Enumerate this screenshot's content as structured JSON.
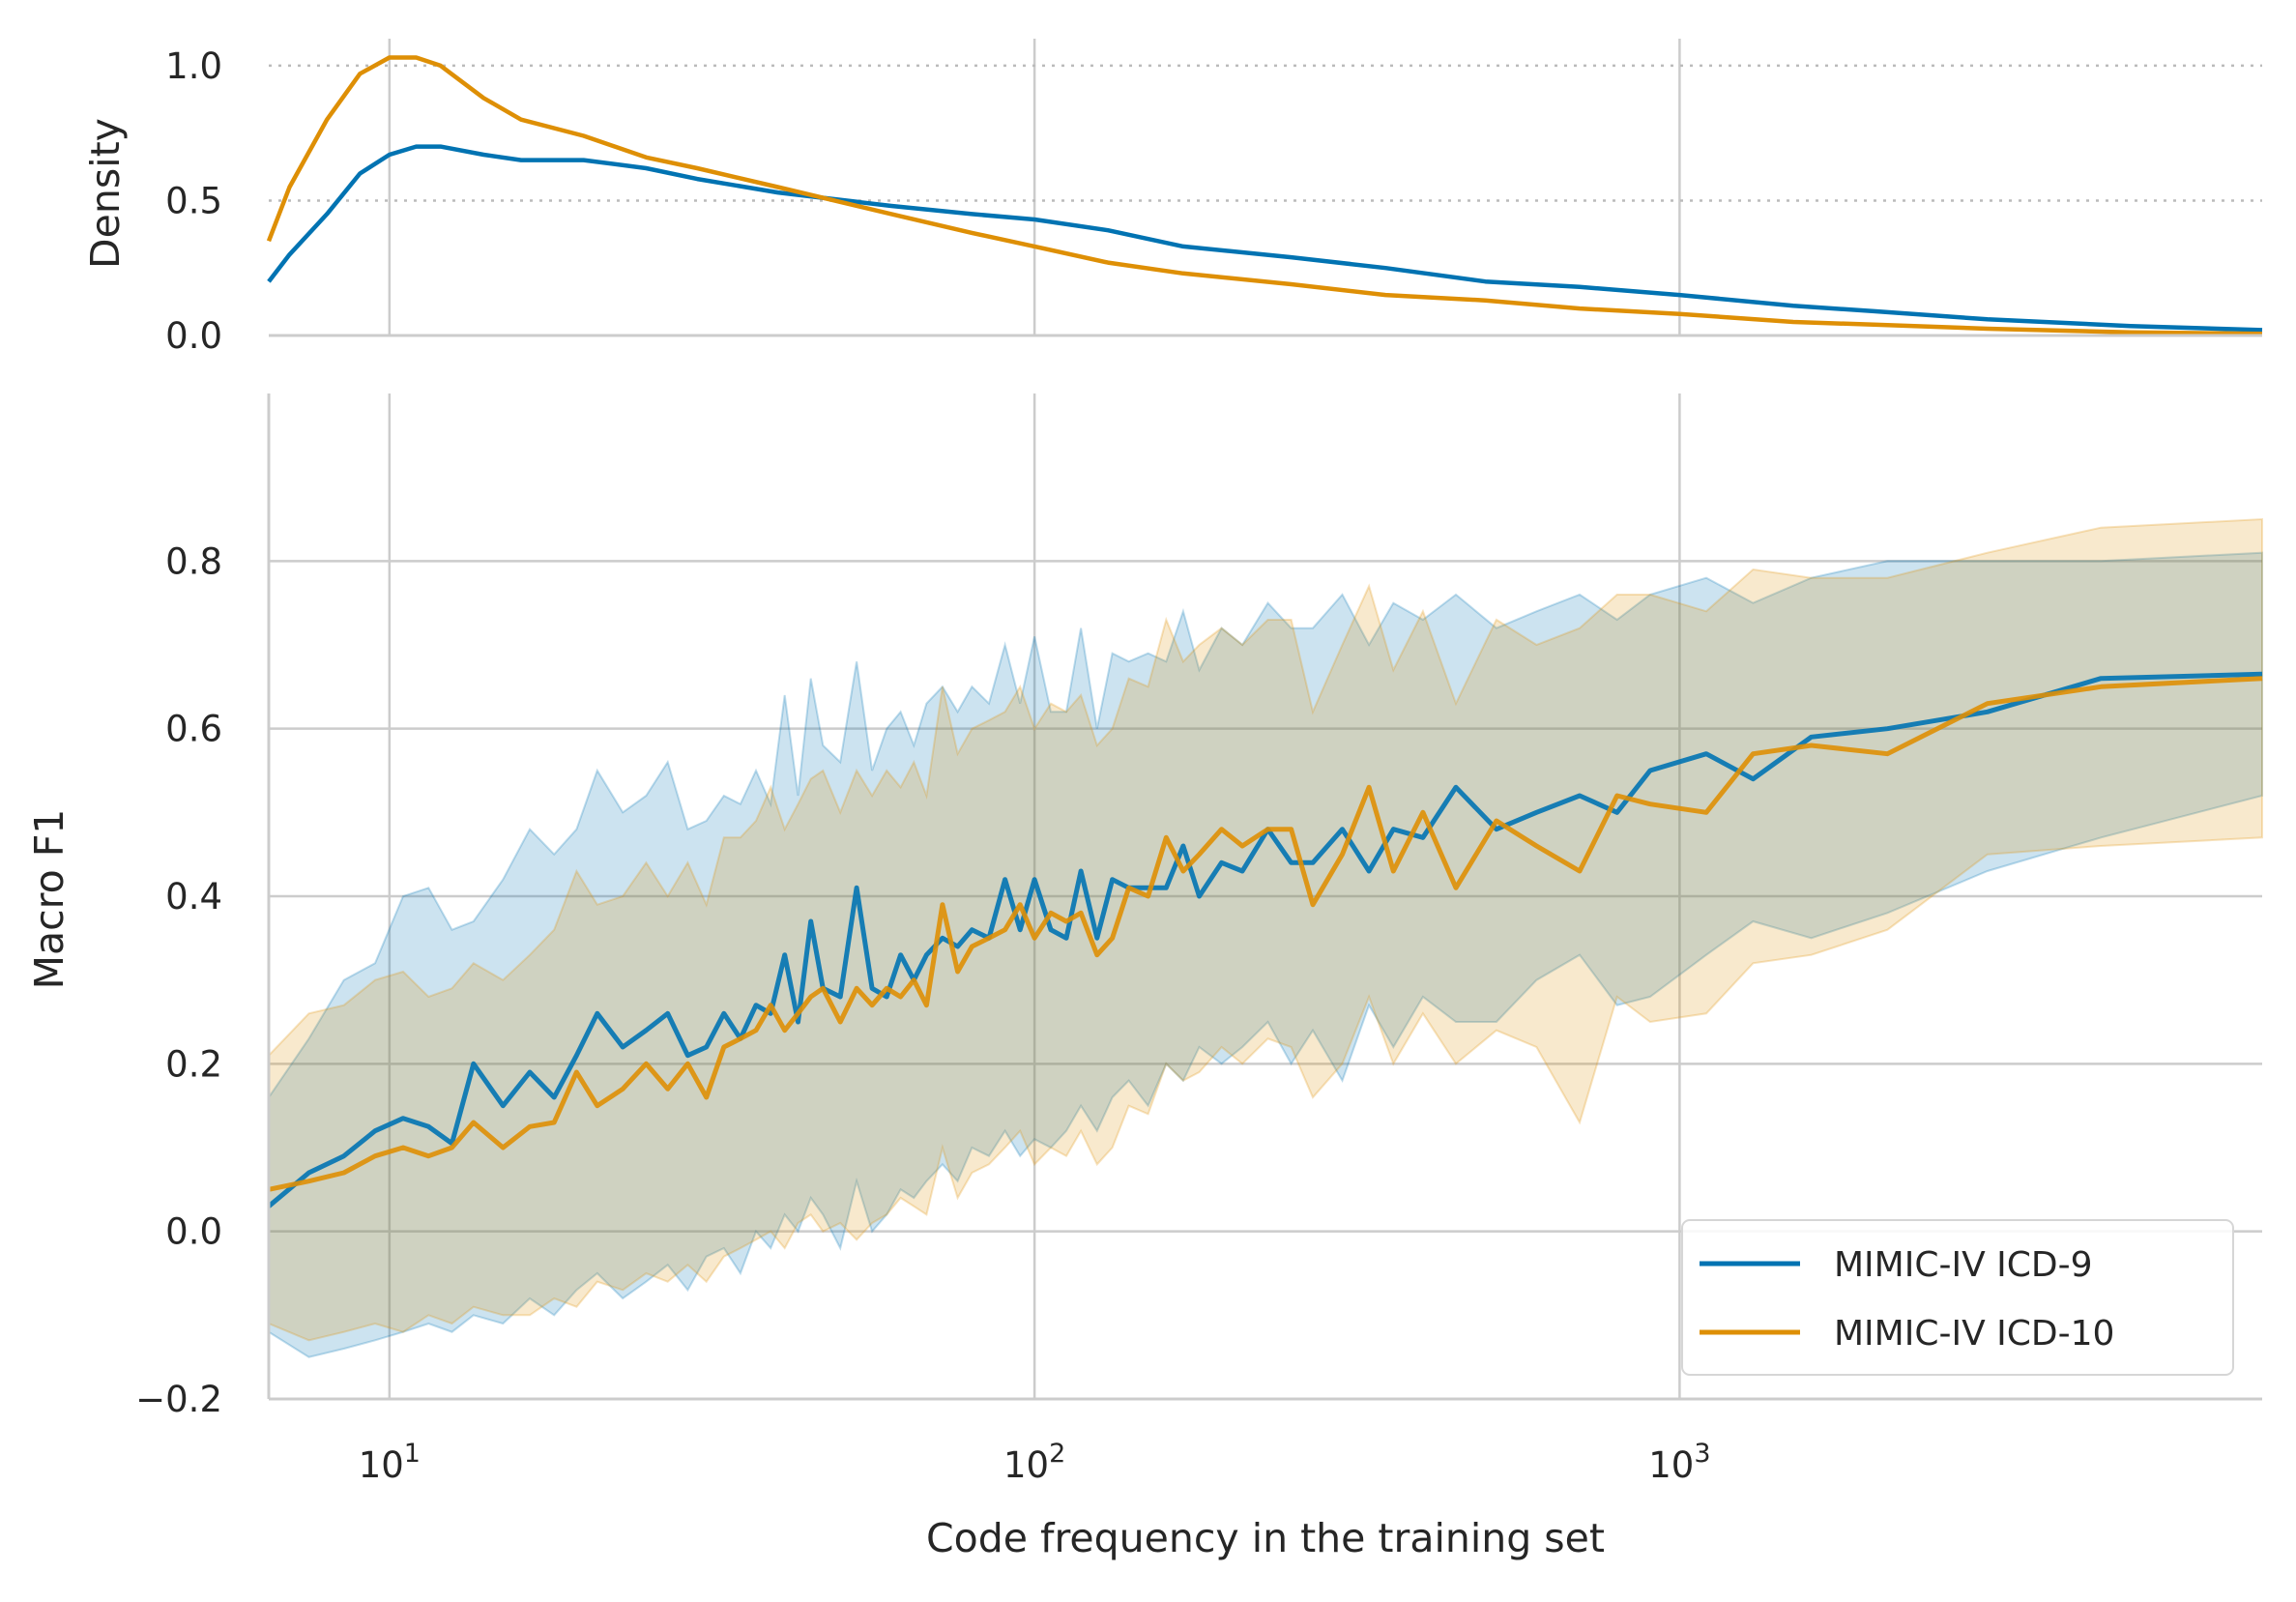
{
  "chart_data": [
    {
      "panel": "density",
      "type": "line",
      "ylabel": "Density",
      "xscale": "log",
      "xlim": [
        6.5,
        8000
      ],
      "ylim": [
        0,
        1.1
      ],
      "yticks": [
        "0.0",
        "0.5",
        "1.0"
      ],
      "y_gridlines": "dotted",
      "series": [
        {
          "name": "MIMIC-IV ICD-9",
          "color": "#0173b2",
          "x": [
            6.5,
            7,
            8,
            9,
            10,
            11,
            12,
            14,
            16,
            20,
            25,
            30,
            40,
            60,
            80,
            100,
            130,
            170,
            250,
            350,
            500,
            700,
            1000,
            1500,
            2000,
            3000,
            5000,
            8000
          ],
          "y": [
            0.2,
            0.3,
            0.45,
            0.6,
            0.67,
            0.7,
            0.7,
            0.67,
            0.65,
            0.65,
            0.62,
            0.58,
            0.53,
            0.48,
            0.45,
            0.43,
            0.39,
            0.33,
            0.29,
            0.25,
            0.2,
            0.18,
            0.15,
            0.11,
            0.09,
            0.06,
            0.035,
            0.02
          ]
        },
        {
          "name": "MIMIC-IV ICD-10",
          "color": "#de8f05",
          "x": [
            6.5,
            7,
            8,
            9,
            10,
            11,
            12,
            14,
            16,
            20,
            25,
            30,
            40,
            60,
            80,
            100,
            130,
            170,
            250,
            350,
            500,
            700,
            1000,
            1500,
            2000,
            3000,
            5000,
            8000
          ],
          "y": [
            0.35,
            0.55,
            0.8,
            0.97,
            1.03,
            1.03,
            1.0,
            0.88,
            0.8,
            0.74,
            0.66,
            0.62,
            0.55,
            0.45,
            0.38,
            0.33,
            0.27,
            0.23,
            0.19,
            0.15,
            0.13,
            0.1,
            0.08,
            0.05,
            0.04,
            0.025,
            0.012,
            0.006
          ]
        }
      ]
    },
    {
      "panel": "f1",
      "type": "line",
      "xlabel": "Code frequency in the training set",
      "ylabel": "Macro F1",
      "xscale": "log",
      "xlim": [
        6.5,
        8000
      ],
      "ylim": [
        -0.2,
        1.0
      ],
      "yticks": [
        "−0.2",
        "0.0",
        "0.2",
        "0.4",
        "0.6",
        "0.8"
      ],
      "xticks": [
        {
          "base": "10",
          "exp": "1"
        },
        {
          "base": "10",
          "exp": "2"
        },
        {
          "base": "10",
          "exp": "3"
        }
      ],
      "grid": true,
      "legend_position": "lower right",
      "series": [
        {
          "name": "MIMIC-IV ICD-9",
          "color": "#0173b2",
          "x": [
            6.5,
            7.5,
            8.5,
            9.5,
            10.5,
            11.5,
            12.5,
            13.5,
            15,
            16.5,
            18,
            19.5,
            21,
            23,
            25,
            27,
            29,
            31,
            33,
            35,
            37,
            39,
            41,
            43,
            45,
            47,
            50,
            53,
            56,
            59,
            62,
            65,
            68,
            72,
            76,
            80,
            85,
            90,
            95,
            100,
            106,
            112,
            118,
            125,
            132,
            140,
            150,
            160,
            170,
            180,
            195,
            210,
            230,
            250,
            270,
            300,
            330,
            360,
            400,
            450,
            520,
            600,
            700,
            800,
            900,
            1100,
            1300,
            1600,
            2100,
            3000,
            4500,
            8000
          ],
          "y": [
            0.03,
            0.07,
            0.09,
            0.12,
            0.135,
            0.125,
            0.105,
            0.2,
            0.15,
            0.19,
            0.16,
            0.21,
            0.26,
            0.22,
            0.24,
            0.26,
            0.21,
            0.22,
            0.26,
            0.23,
            0.27,
            0.26,
            0.33,
            0.25,
            0.37,
            0.29,
            0.28,
            0.41,
            0.29,
            0.28,
            0.33,
            0.3,
            0.33,
            0.35,
            0.34,
            0.36,
            0.35,
            0.42,
            0.36,
            0.42,
            0.36,
            0.35,
            0.43,
            0.35,
            0.42,
            0.41,
            0.41,
            0.41,
            0.46,
            0.4,
            0.44,
            0.43,
            0.48,
            0.44,
            0.44,
            0.48,
            0.43,
            0.48,
            0.47,
            0.53,
            0.48,
            0.5,
            0.52,
            0.5,
            0.55,
            0.57,
            0.54,
            0.59,
            0.6,
            0.62,
            0.66,
            0.665
          ]
        },
        {
          "name": "MIMIC-IV ICD-10",
          "color": "#de8f05",
          "x": [
            6.5,
            7.5,
            8.5,
            9.5,
            10.5,
            11.5,
            12.5,
            13.5,
            15,
            16.5,
            18,
            19.5,
            21,
            23,
            25,
            27,
            29,
            31,
            33,
            35,
            37,
            39,
            41,
            43,
            45,
            47,
            50,
            53,
            56,
            59,
            62,
            65,
            68,
            72,
            76,
            80,
            85,
            90,
            95,
            100,
            106,
            112,
            118,
            125,
            132,
            140,
            150,
            160,
            170,
            180,
            195,
            210,
            230,
            250,
            270,
            300,
            330,
            360,
            400,
            450,
            520,
            600,
            700,
            800,
            900,
            1100,
            1300,
            1600,
            2100,
            3000,
            4500,
            8000
          ],
          "y": [
            0.05,
            0.06,
            0.07,
            0.09,
            0.1,
            0.09,
            0.1,
            0.13,
            0.1,
            0.125,
            0.13,
            0.19,
            0.15,
            0.17,
            0.2,
            0.17,
            0.2,
            0.16,
            0.22,
            0.23,
            0.24,
            0.27,
            0.24,
            0.26,
            0.28,
            0.29,
            0.25,
            0.29,
            0.27,
            0.29,
            0.28,
            0.3,
            0.27,
            0.39,
            0.31,
            0.34,
            0.35,
            0.36,
            0.39,
            0.35,
            0.38,
            0.37,
            0.38,
            0.33,
            0.35,
            0.41,
            0.4,
            0.47,
            0.43,
            0.45,
            0.48,
            0.46,
            0.48,
            0.48,
            0.39,
            0.45,
            0.53,
            0.43,
            0.5,
            0.41,
            0.49,
            0.46,
            0.43,
            0.52,
            0.51,
            0.5,
            0.57,
            0.58,
            0.57,
            0.63,
            0.65,
            0.66
          ]
        }
      ],
      "bands": [
        {
          "series": "MIMIC-IV ICD-9",
          "color": "#0173b2",
          "x": [
            6.5,
            7.5,
            8.5,
            9.5,
            10.5,
            11.5,
            12.5,
            13.5,
            15,
            16.5,
            18,
            19.5,
            21,
            23,
            25,
            27,
            29,
            31,
            33,
            35,
            37,
            39,
            41,
            43,
            45,
            47,
            50,
            53,
            56,
            59,
            62,
            65,
            68,
            72,
            76,
            80,
            85,
            90,
            95,
            100,
            106,
            112,
            118,
            125,
            132,
            140,
            150,
            160,
            170,
            180,
            195,
            210,
            230,
            250,
            270,
            300,
            330,
            360,
            400,
            450,
            520,
            600,
            700,
            800,
            900,
            1100,
            1300,
            1600,
            2100,
            3000,
            4500,
            8000
          ],
          "lower": [
            -0.12,
            -0.15,
            -0.14,
            -0.13,
            -0.12,
            -0.11,
            -0.12,
            -0.1,
            -0.11,
            -0.08,
            -0.1,
            -0.07,
            -0.05,
            -0.08,
            -0.06,
            -0.04,
            -0.07,
            -0.03,
            -0.02,
            -0.05,
            0.0,
            -0.02,
            0.02,
            0.0,
            0.04,
            0.02,
            -0.02,
            0.06,
            0.0,
            0.02,
            0.05,
            0.04,
            0.06,
            0.08,
            0.06,
            0.1,
            0.09,
            0.12,
            0.09,
            0.11,
            0.1,
            0.12,
            0.15,
            0.12,
            0.16,
            0.18,
            0.15,
            0.2,
            0.18,
            0.22,
            0.2,
            0.22,
            0.25,
            0.2,
            0.24,
            0.18,
            0.27,
            0.22,
            0.28,
            0.25,
            0.25,
            0.3,
            0.33,
            0.27,
            0.28,
            0.33,
            0.37,
            0.35,
            0.38,
            0.43,
            0.47,
            0.52
          ],
          "upper": [
            0.16,
            0.23,
            0.3,
            0.32,
            0.4,
            0.41,
            0.36,
            0.37,
            0.42,
            0.48,
            0.45,
            0.48,
            0.55,
            0.5,
            0.52,
            0.56,
            0.48,
            0.49,
            0.52,
            0.51,
            0.55,
            0.51,
            0.64,
            0.52,
            0.66,
            0.58,
            0.56,
            0.68,
            0.55,
            0.6,
            0.62,
            0.58,
            0.63,
            0.65,
            0.62,
            0.65,
            0.63,
            0.7,
            0.63,
            0.71,
            0.62,
            0.62,
            0.72,
            0.6,
            0.69,
            0.68,
            0.69,
            0.68,
            0.74,
            0.67,
            0.72,
            0.7,
            0.75,
            0.72,
            0.72,
            0.76,
            0.7,
            0.75,
            0.73,
            0.76,
            0.72,
            0.74,
            0.76,
            0.73,
            0.76,
            0.78,
            0.75,
            0.78,
            0.8,
            0.8,
            0.8,
            0.81
          ]
        },
        {
          "series": "MIMIC-IV ICD-10",
          "color": "#de8f05",
          "x": [
            6.5,
            7.5,
            8.5,
            9.5,
            10.5,
            11.5,
            12.5,
            13.5,
            15,
            16.5,
            18,
            19.5,
            21,
            23,
            25,
            27,
            29,
            31,
            33,
            35,
            37,
            39,
            41,
            43,
            45,
            47,
            50,
            53,
            56,
            59,
            62,
            65,
            68,
            72,
            76,
            80,
            85,
            90,
            95,
            100,
            106,
            112,
            118,
            125,
            132,
            140,
            150,
            160,
            170,
            180,
            195,
            210,
            230,
            250,
            270,
            300,
            330,
            360,
            400,
            450,
            520,
            600,
            700,
            800,
            900,
            1100,
            1300,
            1600,
            2100,
            3000,
            4500,
            8000
          ],
          "lower": [
            -0.11,
            -0.13,
            -0.12,
            -0.11,
            -0.12,
            -0.1,
            -0.11,
            -0.09,
            -0.1,
            -0.1,
            -0.08,
            -0.09,
            -0.06,
            -0.07,
            -0.05,
            -0.06,
            -0.04,
            -0.06,
            -0.03,
            -0.02,
            -0.01,
            0.0,
            -0.02,
            0.01,
            0.02,
            0.0,
            0.01,
            -0.01,
            0.01,
            0.02,
            0.04,
            0.03,
            0.02,
            0.1,
            0.04,
            0.07,
            0.08,
            0.1,
            0.12,
            0.08,
            0.1,
            0.09,
            0.12,
            0.08,
            0.1,
            0.15,
            0.14,
            0.2,
            0.18,
            0.19,
            0.22,
            0.2,
            0.23,
            0.22,
            0.16,
            0.2,
            0.28,
            0.2,
            0.26,
            0.2,
            0.24,
            0.22,
            0.13,
            0.28,
            0.25,
            0.26,
            0.32,
            0.33,
            0.36,
            0.45,
            0.46,
            0.47
          ],
          "upper": [
            0.21,
            0.26,
            0.27,
            0.3,
            0.31,
            0.28,
            0.29,
            0.32,
            0.3,
            0.33,
            0.36,
            0.43,
            0.39,
            0.4,
            0.44,
            0.4,
            0.44,
            0.39,
            0.47,
            0.47,
            0.49,
            0.53,
            0.48,
            0.51,
            0.54,
            0.55,
            0.5,
            0.55,
            0.52,
            0.55,
            0.53,
            0.56,
            0.52,
            0.65,
            0.57,
            0.6,
            0.61,
            0.62,
            0.65,
            0.6,
            0.63,
            0.62,
            0.64,
            0.58,
            0.6,
            0.66,
            0.65,
            0.73,
            0.68,
            0.7,
            0.72,
            0.7,
            0.73,
            0.73,
            0.62,
            0.7,
            0.77,
            0.67,
            0.74,
            0.63,
            0.73,
            0.7,
            0.72,
            0.76,
            0.76,
            0.74,
            0.79,
            0.78,
            0.78,
            0.81,
            0.84,
            0.85
          ]
        }
      ]
    }
  ]
}
